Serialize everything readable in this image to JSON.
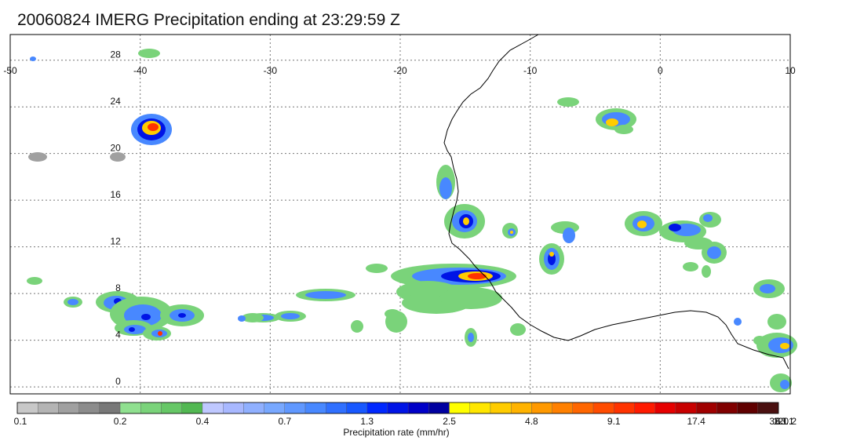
{
  "title": "20060824 IMERG Precipitation ending at 23:29:59 Z",
  "map": {
    "lon_min": -50,
    "lon_max": 10,
    "lat_min": -0.6,
    "lat_max": 30.2,
    "lon_ticks": [
      "-50",
      "-40",
      "-30",
      "-20",
      "-10",
      "0",
      "10"
    ],
    "lon_values": [
      -50,
      -40,
      -30,
      -20,
      -10,
      0,
      10
    ],
    "lat_ticks": [
      "0",
      "4",
      "8",
      "12",
      "16",
      "20",
      "24",
      "28"
    ],
    "lat_values": [
      0,
      4,
      8,
      12,
      16,
      20,
      24,
      28
    ]
  },
  "colorbar": {
    "label": "Precipitation rate (mm/hr)",
    "ticks": [
      "0.1",
      "0.2",
      "0.4",
      "0.7",
      "1.3",
      "2.5",
      "4.8",
      "9.1",
      "17.4",
      "33.1",
      "63.1",
      "120.2"
    ],
    "colors": [
      "#c8c8c8",
      "#b4b4b4",
      "#a0a0a0",
      "#8c8c8c",
      "#787878",
      "#8fe08f",
      "#7ad37a",
      "#66c766",
      "#52b852",
      "#bfc8ff",
      "#a8b8ff",
      "#90b0ff",
      "#78a8ff",
      "#6098ff",
      "#4888ff",
      "#3070ff",
      "#1858ff",
      "#0028ff",
      "#0014e6",
      "#0000c8",
      "#0000a0",
      "#ffff00",
      "#ffe600",
      "#ffcc00",
      "#ffb300",
      "#ff9900",
      "#ff8000",
      "#ff6600",
      "#ff4c00",
      "#ff3300",
      "#ff1a00",
      "#e60000",
      "#c80000",
      "#a00000",
      "#800000",
      "#600000",
      "#4a1010"
    ]
  },
  "legend_colors": {
    "light": "#7ad37a",
    "moderate": "#4888ff",
    "heavy": "#0014e6",
    "intense": "#ffcc00",
    "extreme": "#ff3300",
    "gray": "#a0a0a0"
  }
}
